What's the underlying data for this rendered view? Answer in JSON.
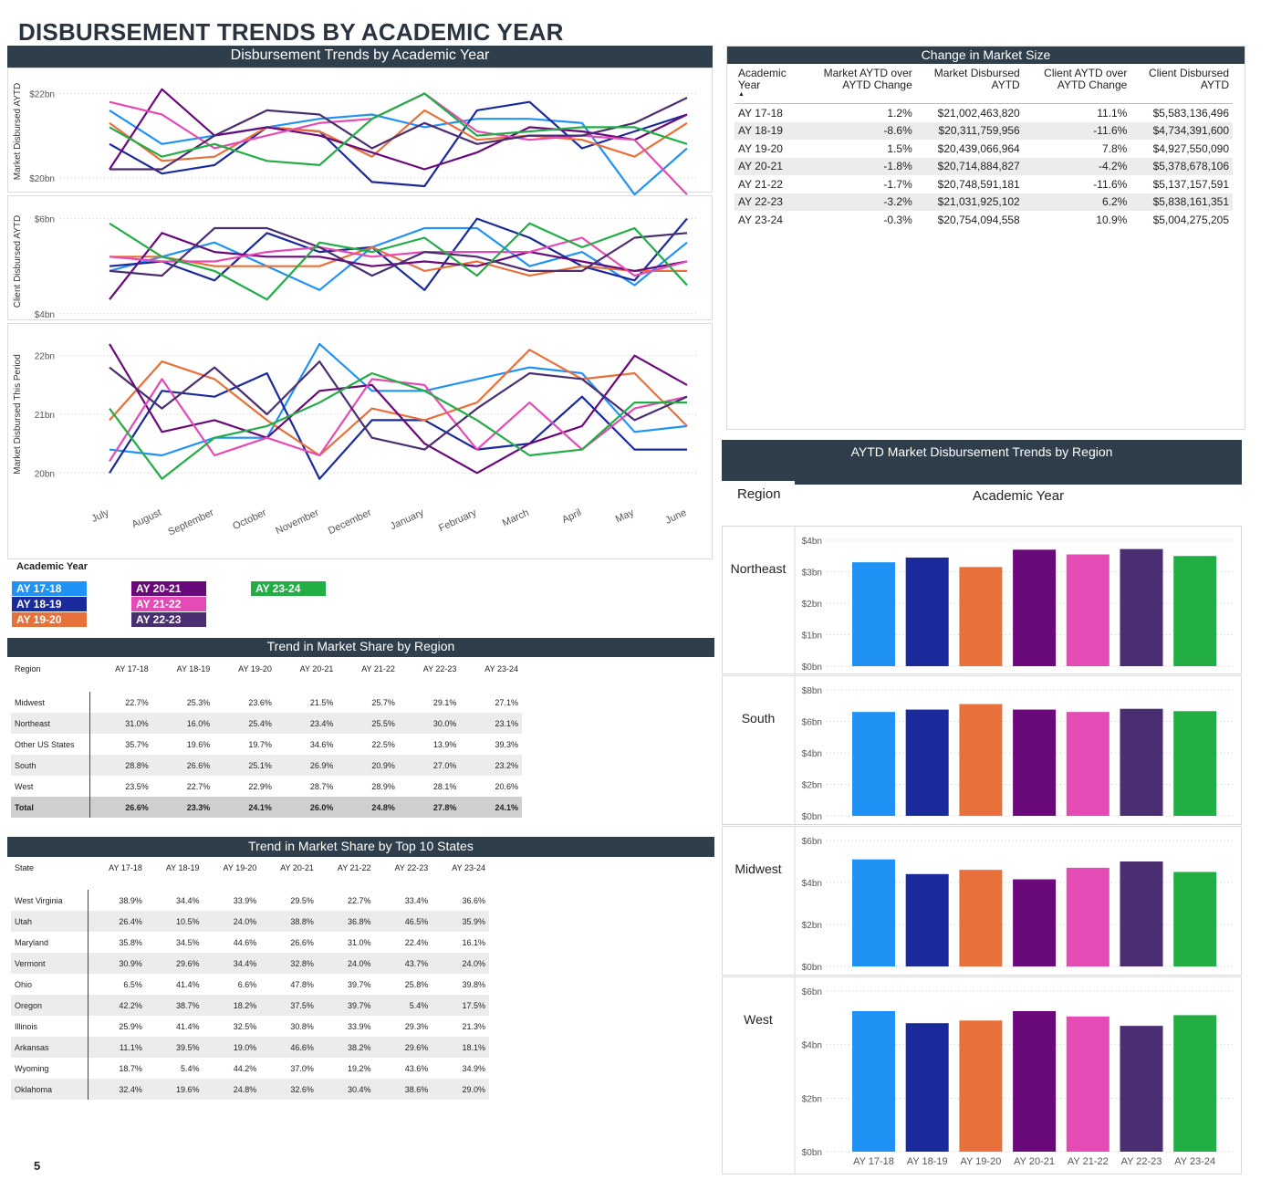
{
  "page": {
    "title": "DISBURSEMENT TRENDS BY ACADEMIC YEAR",
    "page_number": "5"
  },
  "colors": {
    "AY 17-18": "#2192f5",
    "AY 18-19": "#1a2a9a",
    "AY 19-20": "#e8703a",
    "AY 20-21": "#6a0a7a",
    "AY 21-22": "#e54bb4",
    "AY 22-23": "#4b2d72",
    "AY 23-24": "#22ad45",
    "header_bg": "#2f3e4b"
  },
  "left_chart": {
    "header": "Disbursement Trends by Academic Year",
    "legend_title": "Academic Year"
  },
  "market_size": {
    "header": "Change in Market Size",
    "columns": [
      "Academic Year",
      "Market AYTD over AYTD Change",
      "Market Disbursed AYTD",
      "Client AYTD over AYTD Change",
      "Client Disbursed AYTD"
    ],
    "rows": [
      [
        "AY 17-18",
        "1.2%",
        "$21,002,463,820",
        "11.1%",
        "$5,583,136,496"
      ],
      [
        "AY 18-19",
        "-8.6%",
        "$20,311,759,956",
        "-11.6%",
        "$4,734,391,600"
      ],
      [
        "AY 19-20",
        "1.5%",
        "$20,439,066,964",
        "7.8%",
        "$4,927,550,090"
      ],
      [
        "AY 20-21",
        "-1.8%",
        "$20,714,884,827",
        "-4.2%",
        "$5,378,678,106"
      ],
      [
        "AY 21-22",
        "-1.7%",
        "$20,748,591,181",
        "-11.6%",
        "$5,137,157,591"
      ],
      [
        "AY 22-23",
        "-3.2%",
        "$21,031,925,102",
        "6.2%",
        "$5,838,161,351"
      ],
      [
        "AY 23-24",
        "-0.3%",
        "$20,754,094,558",
        "10.9%",
        "$5,004,275,205"
      ]
    ]
  },
  "region_share": {
    "header": "Trend in Market Share by Region",
    "columns": [
      "Region",
      "AY 17-18",
      "AY 18-19",
      "AY 19-20",
      "AY 20-21",
      "AY 21-22",
      "AY 22-23",
      "AY 23-24"
    ],
    "rows": [
      [
        "Midwest",
        "22.7%",
        "25.3%",
        "23.6%",
        "21.5%",
        "25.7%",
        "29.1%",
        "27.1%"
      ],
      [
        "Northeast",
        "31.0%",
        "16.0%",
        "25.4%",
        "23.4%",
        "25.5%",
        "30.0%",
        "23.1%"
      ],
      [
        "Other US States",
        "35.7%",
        "19.6%",
        "19.7%",
        "34.6%",
        "22.5%",
        "13.9%",
        "39.3%"
      ],
      [
        "South",
        "28.8%",
        "26.6%",
        "25.1%",
        "26.9%",
        "20.9%",
        "27.0%",
        "23.2%"
      ],
      [
        "West",
        "23.5%",
        "22.7%",
        "22.9%",
        "28.7%",
        "28.9%",
        "28.1%",
        "20.6%"
      ]
    ],
    "total": [
      "Total",
      "26.6%",
      "23.3%",
      "24.1%",
      "26.0%",
      "24.8%",
      "27.8%",
      "24.1%"
    ]
  },
  "state_share": {
    "header": "Trend in Market Share by Top 10 States",
    "columns": [
      "State",
      "AY 17-18",
      "AY 18-19",
      "AY 19-20",
      "AY 20-21",
      "AY 21-22",
      "AY 22-23",
      "AY 23-24"
    ],
    "rows": [
      [
        "West Virginia",
        "38.9%",
        "34.4%",
        "33.9%",
        "29.5%",
        "22.7%",
        "33.4%",
        "36.6%"
      ],
      [
        "Utah",
        "26.4%",
        "10.5%",
        "24.0%",
        "38.8%",
        "36.8%",
        "46.5%",
        "35.9%"
      ],
      [
        "Maryland",
        "35.8%",
        "34.5%",
        "44.6%",
        "26.6%",
        "31.0%",
        "22.4%",
        "16.1%"
      ],
      [
        "Vermont",
        "30.9%",
        "29.6%",
        "34.4%",
        "32.8%",
        "24.0%",
        "43.7%",
        "24.0%"
      ],
      [
        "Ohio",
        "6.5%",
        "41.4%",
        "6.6%",
        "47.8%",
        "39.7%",
        "25.8%",
        "39.8%"
      ],
      [
        "Oregon",
        "42.2%",
        "38.7%",
        "18.2%",
        "37.5%",
        "39.7%",
        "5.4%",
        "17.5%"
      ],
      [
        "Illinois",
        "25.9%",
        "41.4%",
        "32.5%",
        "30.8%",
        "33.9%",
        "29.3%",
        "21.3%"
      ],
      [
        "Arkansas",
        "11.1%",
        "39.5%",
        "19.0%",
        "46.6%",
        "38.2%",
        "29.6%",
        "18.1%"
      ],
      [
        "Wyoming",
        "18.7%",
        "5.4%",
        "44.2%",
        "37.0%",
        "19.2%",
        "43.6%",
        "34.9%"
      ],
      [
        "Oklahoma",
        "32.4%",
        "19.6%",
        "24.8%",
        "32.6%",
        "30.4%",
        "38.6%",
        "29.0%"
      ]
    ]
  },
  "region_chart": {
    "header": "AYTD Market Disbursement Trends by Region",
    "row_label": "Region",
    "col_label": "Academic Year"
  },
  "chart_data": [
    {
      "type": "line",
      "ylabel": "Market Disbursed AYTD",
      "yticks": [
        "$20bn",
        "$22bn"
      ],
      "ylim": [
        19.8,
        22.4
      ],
      "categories": [
        "July",
        "August",
        "September",
        "October",
        "November",
        "December",
        "January",
        "February",
        "March",
        "April",
        "May",
        "June"
      ],
      "series": [
        {
          "name": "AY 17-18",
          "values": [
            21.6,
            20.8,
            21.0,
            21.2,
            21.4,
            21.5,
            21.2,
            21.4,
            21.4,
            21.3,
            19.6,
            20.7
          ]
        },
        {
          "name": "AY 18-19",
          "values": [
            20.8,
            20.1,
            20.3,
            21.2,
            21.1,
            19.9,
            19.8,
            21.6,
            21.8,
            20.7,
            21.1,
            21.5
          ]
        },
        {
          "name": "AY 19-20",
          "values": [
            21.3,
            20.4,
            20.5,
            21.2,
            21.1,
            20.5,
            21.6,
            20.9,
            21.0,
            20.9,
            20.5,
            21.3
          ]
        },
        {
          "name": "AY 20-21",
          "values": [
            20.2,
            22.1,
            21.0,
            21.2,
            21.0,
            20.6,
            20.2,
            20.6,
            21.2,
            21.1,
            20.9,
            21.5
          ]
        },
        {
          "name": "AY 21-22",
          "values": [
            21.8,
            21.5,
            20.7,
            21.0,
            21.3,
            21.4,
            22.0,
            21.1,
            20.9,
            21.0,
            20.9,
            19.6
          ]
        },
        {
          "name": "AY 22-23",
          "values": [
            20.2,
            20.2,
            21.0,
            21.6,
            21.5,
            20.7,
            21.3,
            20.8,
            21.0,
            21.0,
            21.3,
            21.9
          ]
        },
        {
          "name": "AY 23-24",
          "values": [
            21.2,
            20.5,
            20.8,
            20.4,
            20.3,
            21.4,
            22.0,
            21.0,
            21.1,
            21.2,
            21.2,
            20.8
          ]
        }
      ]
    },
    {
      "type": "line",
      "ylabel": "Client Disbursed AYTD",
      "yticks": [
        "$4bn",
        "$6bn"
      ],
      "ylim": [
        3.9,
        6.3
      ],
      "categories": [
        "July",
        "August",
        "September",
        "October",
        "November",
        "December",
        "January",
        "February",
        "March",
        "April",
        "May",
        "June"
      ],
      "series": [
        {
          "name": "AY 17-18",
          "values": [
            4.9,
            5.2,
            5.5,
            5.0,
            4.5,
            5.4,
            5.8,
            5.8,
            5.0,
            5.3,
            4.6,
            5.5
          ]
        },
        {
          "name": "AY 18-19",
          "values": [
            5.0,
            5.1,
            4.7,
            5.7,
            5.3,
            5.4,
            4.5,
            6.0,
            5.6,
            5.0,
            4.7,
            6.0
          ]
        },
        {
          "name": "AY 19-20",
          "values": [
            5.2,
            5.2,
            5.0,
            5.0,
            5.0,
            5.4,
            4.9,
            5.1,
            4.8,
            5.0,
            4.9,
            4.9
          ]
        },
        {
          "name": "AY 20-21",
          "values": [
            4.3,
            5.7,
            5.3,
            5.2,
            5.2,
            5.0,
            5.1,
            5.0,
            5.3,
            5.1,
            4.9,
            5.1
          ]
        },
        {
          "name": "AY 21-22",
          "values": [
            5.2,
            5.1,
            5.1,
            5.3,
            5.4,
            5.2,
            5.3,
            5.3,
            5.3,
            5.6,
            4.8,
            5.1
          ]
        },
        {
          "name": "AY 22-23",
          "values": [
            4.9,
            4.8,
            5.8,
            5.8,
            5.4,
            4.8,
            5.3,
            5.2,
            4.9,
            4.9,
            5.6,
            5.7
          ]
        },
        {
          "name": "AY 23-24",
          "values": [
            5.9,
            5.2,
            4.9,
            4.3,
            5.5,
            5.3,
            5.6,
            4.8,
            5.9,
            5.4,
            5.8,
            4.6
          ]
        }
      ]
    },
    {
      "type": "line",
      "ylabel": "Market Disbursed This Period",
      "yticks": [
        "20bn",
        "21bn",
        "22bn"
      ],
      "ylim": [
        19.6,
        22.4
      ],
      "categories": [
        "July",
        "August",
        "September",
        "October",
        "November",
        "December",
        "January",
        "February",
        "March",
        "April",
        "May",
        "June"
      ],
      "series": [
        {
          "name": "AY 17-18",
          "values": [
            20.4,
            20.3,
            20.6,
            20.6,
            22.2,
            21.4,
            21.4,
            21.6,
            21.8,
            21.7,
            20.7,
            20.8
          ]
        },
        {
          "name": "AY 18-19",
          "values": [
            20.0,
            21.4,
            21.3,
            21.7,
            19.9,
            20.9,
            20.9,
            20.4,
            20.5,
            21.3,
            20.4,
            20.4
          ]
        },
        {
          "name": "AY 19-20",
          "values": [
            20.9,
            21.9,
            21.6,
            20.9,
            20.3,
            21.1,
            20.9,
            21.2,
            22.1,
            21.6,
            21.7,
            20.8
          ]
        },
        {
          "name": "AY 20-21",
          "values": [
            22.2,
            20.7,
            20.9,
            20.6,
            21.4,
            21.5,
            20.5,
            20.0,
            20.5,
            20.8,
            22.0,
            21.5
          ]
        },
        {
          "name": "AY 21-22",
          "values": [
            20.2,
            21.6,
            20.3,
            20.6,
            20.3,
            21.6,
            21.5,
            20.4,
            21.2,
            20.4,
            21.1,
            21.3
          ]
        },
        {
          "name": "AY 22-23",
          "values": [
            21.8,
            21.1,
            21.8,
            21.0,
            21.9,
            20.6,
            20.4,
            21.1,
            21.7,
            21.6,
            20.9,
            21.3
          ]
        },
        {
          "name": "AY 23-24",
          "values": [
            21.1,
            19.9,
            20.6,
            20.8,
            21.2,
            21.7,
            21.4,
            20.9,
            20.3,
            20.4,
            21.2,
            21.2
          ]
        }
      ]
    },
    {
      "type": "bar",
      "title": "AYTD Market Disbursement Trends by Region",
      "categories": [
        "AY 17-18",
        "AY 18-19",
        "AY 19-20",
        "AY 20-21",
        "AY 21-22",
        "AY 22-23",
        "AY 23-24"
      ],
      "panels": [
        {
          "region": "Northeast",
          "yticks": [
            "$0bn",
            "$1bn",
            "$2bn",
            "$3bn",
            "$4bn"
          ],
          "ylim": [
            0,
            4
          ],
          "values": [
            3.3,
            3.45,
            3.15,
            3.7,
            3.55,
            3.72,
            3.5
          ]
        },
        {
          "region": "South",
          "yticks": [
            "$0bn",
            "$2bn",
            "$4bn",
            "$6bn",
            "$8bn"
          ],
          "ylim": [
            0,
            8
          ],
          "values": [
            6.6,
            6.75,
            7.1,
            6.75,
            6.6,
            6.8,
            6.65
          ]
        },
        {
          "region": "Midwest",
          "yticks": [
            "$0bn",
            "$2bn",
            "$4bn",
            "$6bn"
          ],
          "ylim": [
            0,
            6
          ],
          "values": [
            5.1,
            4.4,
            4.6,
            4.15,
            4.7,
            5.0,
            4.5
          ]
        },
        {
          "region": "West",
          "yticks": [
            "$0bn",
            "$2bn",
            "$4bn",
            "$6bn"
          ],
          "ylim": [
            0,
            6
          ],
          "values": [
            5.25,
            4.8,
            4.9,
            5.25,
            5.05,
            4.7,
            5.1
          ]
        }
      ]
    }
  ]
}
